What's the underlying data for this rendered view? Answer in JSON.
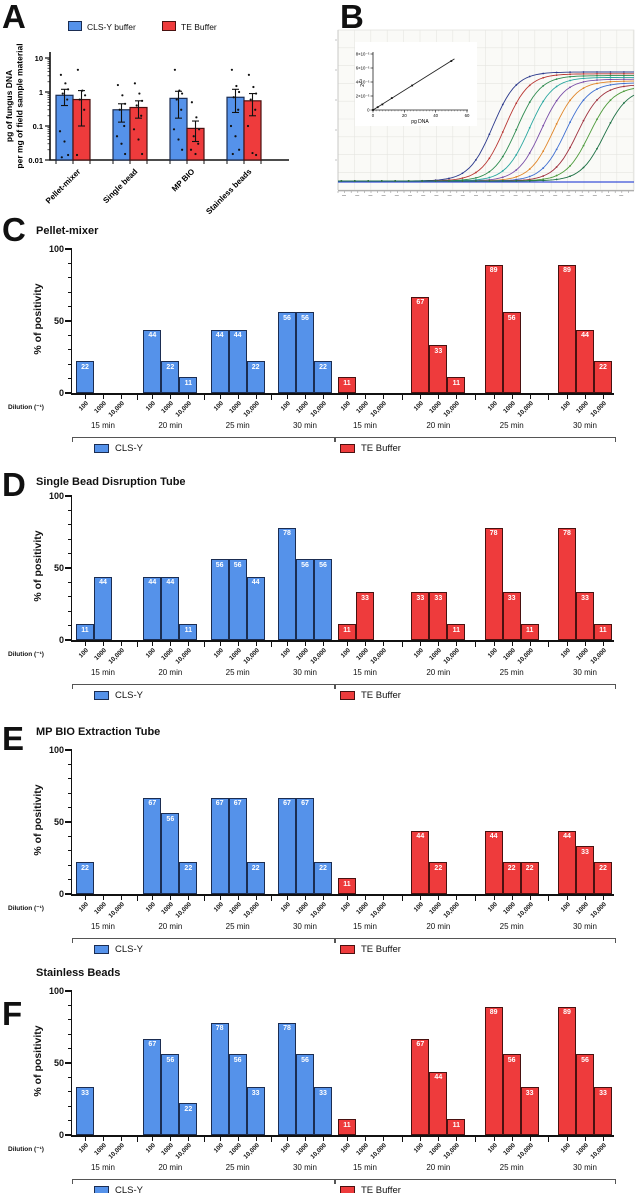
{
  "colors": {
    "blue_fill": "#5592EA",
    "blue_border": "#1B2D52",
    "red_fill": "#EE3B3C",
    "red_border": "#491110",
    "axis": "#111111",
    "bracket": "#555555",
    "threshold_blue": "#3A52D8",
    "grid": "#E5E5E1",
    "panelB_bg": "#FAFAF7",
    "value_label": "#FFFFFF"
  },
  "chart_data": [
    {
      "letter": "A",
      "type": "bar",
      "y_scale": "log",
      "ylabel_lines": [
        "pg of fungus DNA",
        "per mg of field sample material"
      ],
      "ylim": [
        0.01,
        10
      ],
      "ytick_labels": [
        "10",
        "1",
        "0.1",
        "0.01"
      ],
      "categories": [
        "Pellet-mixer",
        "Single bead",
        "MP BIO",
        "Stainless beads"
      ],
      "legend_position": "top",
      "series": [
        {
          "name": "CLS-Y buffer",
          "color_key": "blue",
          "values": [
            0.8,
            0.3,
            0.65,
            0.7
          ],
          "err_low": [
            0.4,
            0.13,
            0.17,
            0.25
          ],
          "err_high": [
            1.2,
            0.45,
            1.05,
            1.2
          ],
          "points": [
            [
              3.2,
              1.8,
              1.2,
              0.9,
              0.6,
              0.07,
              0.035,
              0.014,
              0.012
            ],
            [
              1.6,
              0.8,
              0.45,
              0.3,
              0.1,
              0.05,
              0.03,
              0.015
            ],
            [
              4.5,
              1.1,
              0.9,
              0.6,
              0.3,
              0.08,
              0.04,
              0.02
            ],
            [
              4.5,
              1.5,
              1.0,
              0.7,
              0.3,
              0.1,
              0.05,
              0.02,
              0.015
            ]
          ]
        },
        {
          "name": "TE Buffer",
          "color_key": "red",
          "values": [
            0.6,
            0.35,
            0.085,
            0.55
          ],
          "err_low": [
            0.1,
            0.17,
            0.035,
            0.2
          ],
          "err_high": [
            1.1,
            0.55,
            0.14,
            0.9
          ],
          "points": [
            [
              4.5,
              1.1,
              0.8,
              0.6,
              0.3,
              0.014
            ],
            [
              1.8,
              0.9,
              0.55,
              0.4,
              0.2,
              0.08,
              0.04,
              0.015
            ],
            [
              0.5,
              0.18,
              0.08,
              0.05,
              0.03,
              0.02,
              0.015
            ],
            [
              3.2,
              1.4,
              0.9,
              0.6,
              0.3,
              0.1,
              0.016,
              0.014
            ]
          ]
        }
      ]
    },
    {
      "letter": "B",
      "type": "line",
      "description": "qPCR amplification sigmoid curves, serial dilutions",
      "xrange_cycles": [
        1,
        45
      ],
      "curves": [
        {
          "color": "#2C3A8C",
          "midpoint": 24.0
        },
        {
          "color": "#B93733",
          "midpoint": 25.8
        },
        {
          "color": "#2E8B4F",
          "midpoint": 27.6
        },
        {
          "color": "#2AA7A0",
          "midpoint": 29.4
        },
        {
          "color": "#7A4FA8",
          "midpoint": 31.2
        },
        {
          "color": "#E0862A",
          "midpoint": 33.0
        },
        {
          "color": "#3F6FD1",
          "midpoint": 34.8
        },
        {
          "color": "#A03340",
          "midpoint": 36.6
        },
        {
          "color": "#4C9A3A",
          "midpoint": 38.4
        },
        {
          "color": "#1E7145",
          "midpoint": 40.6
        }
      ],
      "threshold_line": true,
      "inset": {
        "xlabel": "pg DNA",
        "ylabel_base": "2",
        "ylabel_sup": "-Ct",
        "xtick_labels": [
          "0",
          "20",
          "40",
          "60"
        ],
        "xticks": [
          0,
          20,
          40,
          60
        ],
        "ytick_labels": [
          "0",
          "2×10⁻⁵",
          "4×10⁻⁵",
          "6×10⁻⁵",
          "8×10⁻⁵"
        ],
        "yticks": [
          0,
          2e-05,
          4e-05,
          6e-05,
          8e-05
        ],
        "points_x": [
          0,
          3,
          6,
          12,
          25,
          50
        ],
        "points_y": [
          0,
          4e-06,
          8e-06,
          1.7e-05,
          3.5e-05,
          7e-05
        ],
        "fit_line": {
          "x": [
            0,
            52
          ],
          "y": [
            0,
            7.3e-05
          ]
        }
      }
    },
    {
      "letter": "C",
      "type": "bar",
      "title": "Pellet-mixer",
      "ylabel": "% of positivity",
      "ylim": [
        0,
        100
      ],
      "ytick_labels": [
        "0",
        "50",
        "100"
      ],
      "yticks": [
        0,
        50,
        100
      ],
      "xlabel": "Dilution (⁻¹)",
      "dilutions": [
        "100",
        "1000",
        "10,000"
      ],
      "times": [
        "15 min",
        "20 min",
        "25 min",
        "30 min"
      ],
      "series": [
        {
          "name": "CLS-Y",
          "color_key": "blue",
          "values": [
            [
              22,
              0,
              0
            ],
            [
              44,
              22,
              11
            ],
            [
              44,
              44,
              22
            ],
            [
              56,
              56,
              22
            ]
          ]
        },
        {
          "name": "TE Buffer",
          "color_key": "red",
          "values": [
            [
              11,
              0,
              0
            ],
            [
              67,
              33,
              11
            ],
            [
              89,
              56,
              0
            ],
            [
              89,
              44,
              22
            ]
          ]
        }
      ]
    },
    {
      "letter": "D",
      "type": "bar",
      "title": "Single Bead Disruption Tube",
      "ylabel": "% of positivity",
      "ylim": [
        0,
        100
      ],
      "ytick_labels": [
        "0",
        "50",
        "100"
      ],
      "yticks": [
        0,
        50,
        100
      ],
      "xlabel": "Dilution (⁻¹)",
      "dilutions": [
        "100",
        "1000",
        "10,000"
      ],
      "times": [
        "15 min",
        "20 min",
        "25 min",
        "30 min"
      ],
      "series": [
        {
          "name": "CLS-Y",
          "color_key": "blue",
          "values": [
            [
              11,
              44,
              0
            ],
            [
              44,
              44,
              11
            ],
            [
              56,
              56,
              44
            ],
            [
              78,
              56,
              56
            ]
          ]
        },
        {
          "name": "TE Buffer",
          "color_key": "red",
          "values": [
            [
              11,
              33,
              0
            ],
            [
              33,
              33,
              11
            ],
            [
              78,
              33,
              11
            ],
            [
              78,
              33,
              11
            ]
          ]
        }
      ]
    },
    {
      "letter": "E",
      "type": "bar",
      "title": "MP BIO Extraction Tube",
      "ylabel": "% of positivity",
      "ylim": [
        0,
        100
      ],
      "ytick_labels": [
        "0",
        "50",
        "100"
      ],
      "yticks": [
        0,
        50,
        100
      ],
      "xlabel": "Dilution (⁻¹)",
      "dilutions": [
        "100",
        "1000",
        "10,000"
      ],
      "times": [
        "15 min",
        "20 min",
        "25 min",
        "30 min"
      ],
      "series": [
        {
          "name": "CLS-Y",
          "color_key": "blue",
          "values": [
            [
              22,
              0,
              0
            ],
            [
              67,
              56,
              22
            ],
            [
              67,
              67,
              22
            ],
            [
              67,
              67,
              22
            ]
          ]
        },
        {
          "name": "TE Buffer",
          "color_key": "red",
          "values": [
            [
              11,
              0,
              0
            ],
            [
              44,
              22,
              0
            ],
            [
              44,
              22,
              22
            ],
            [
              44,
              33,
              22
            ]
          ]
        }
      ]
    },
    {
      "letter": "F",
      "type": "bar",
      "title": "Stainless Beads",
      "ylabel": "% of positivity",
      "ylim": [
        0,
        100
      ],
      "ytick_labels": [
        "0",
        "50",
        "100"
      ],
      "yticks": [
        0,
        50,
        100
      ],
      "xlabel": "Dilution (⁻¹)",
      "dilutions": [
        "100",
        "1000",
        "10,000"
      ],
      "times": [
        "15 min",
        "20 min",
        "25 min",
        "30 min"
      ],
      "series": [
        {
          "name": "CLS-Y",
          "color_key": "blue",
          "values": [
            [
              33,
              0,
              0
            ],
            [
              67,
              56,
              22
            ],
            [
              78,
              56,
              33
            ],
            [
              78,
              56,
              33
            ]
          ]
        },
        {
          "name": "TE Buffer",
          "color_key": "red",
          "values": [
            [
              11,
              0,
              0
            ],
            [
              67,
              44,
              11
            ],
            [
              89,
              56,
              33
            ],
            [
              89,
              56,
              33
            ]
          ]
        }
      ]
    }
  ]
}
